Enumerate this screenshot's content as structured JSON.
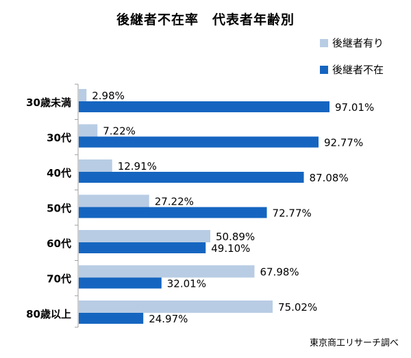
{
  "chart_data": {
    "type": "bar",
    "orientation": "horizontal",
    "title": "後継者不在率　代表者年齢別",
    "categories": [
      "30歳未満",
      "30代",
      "40代",
      "50代",
      "60代",
      "70代",
      "80歳以上"
    ],
    "series": [
      {
        "name": "後継者有り",
        "color": "#b8cce4",
        "values": [
          2.98,
          7.22,
          12.91,
          27.22,
          50.89,
          67.98,
          75.02
        ],
        "labels": [
          "2.98%",
          "7.22%",
          "12.91%",
          "27.22%",
          "50.89%",
          "67.98%",
          "75.02%"
        ]
      },
      {
        "name": "後継者不在",
        "color": "#1565c0",
        "values": [
          97.01,
          92.77,
          87.08,
          72.77,
          49.1,
          32.01,
          24.97
        ],
        "labels": [
          "97.01%",
          "92.77%",
          "87.08%",
          "72.77%",
          "49.10%",
          "32.01%",
          "24.97%"
        ]
      }
    ],
    "xlim": [
      0,
      100
    ],
    "grid": false,
    "legend_position": "top-right",
    "source": "東京商工リサーチ調べ"
  }
}
